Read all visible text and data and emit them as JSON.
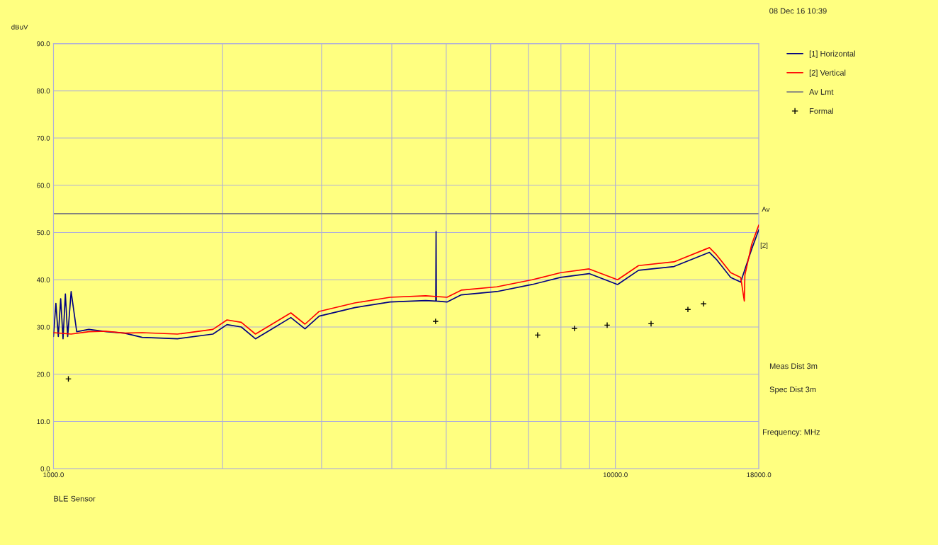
{
  "chart_data": {
    "type": "line",
    "ylabel": "dBuV",
    "xlabel": "Frequency: MHz",
    "log": "x",
    "xlim": [
      1000,
      18000
    ],
    "xticks": [
      {
        "value": 1000,
        "label": "1000.0"
      },
      {
        "value": 2000,
        "label": null
      },
      {
        "value": 3000,
        "label": null
      },
      {
        "value": 4000,
        "label": null
      },
      {
        "value": 5000,
        "label": null
      },
      {
        "value": 6000,
        "label": null
      },
      {
        "value": 7000,
        "label": null
      },
      {
        "value": 8000,
        "label": null
      },
      {
        "value": 9000,
        "label": null
      },
      {
        "value": 10000,
        "label": "10000.0"
      },
      {
        "value": 18000,
        "label": "18000.0"
      }
    ],
    "ylim": [
      0,
      90
    ],
    "yticks": [
      {
        "value": 0,
        "label": "0.0"
      },
      {
        "value": 10,
        "label": "10.0"
      },
      {
        "value": 20,
        "label": "20.0"
      },
      {
        "value": 30,
        "label": "30.0"
      },
      {
        "value": 40,
        "label": "40.0"
      },
      {
        "value": 50,
        "label": "50.0"
      },
      {
        "value": 60,
        "label": "60.0"
      },
      {
        "value": 70,
        "label": "70.0"
      },
      {
        "value": 80,
        "label": "80.0"
      },
      {
        "value": 90,
        "label": "90.0"
      }
    ],
    "grid": true,
    "legend": "right",
    "series": [
      {
        "name": "[1] Horizontal",
        "color": "#000080",
        "x": [
          1000,
          1010,
          1020,
          1030,
          1040,
          1050,
          1060,
          1075,
          1100,
          1156,
          1243,
          1337,
          1438,
          1662,
          1922,
          2036,
          2159,
          2288,
          2425,
          2645,
          2803,
          2971,
          3436,
          3973,
          4595,
          4790,
          4796,
          4802,
          5015,
          5318,
          6150,
          7111,
          7990,
          8979,
          10090,
          10995,
          12713,
          14700,
          15130,
          16040,
          16710,
          17480,
          18000
        ],
        "values": [
          28,
          35,
          28,
          36,
          27.5,
          37,
          28,
          37.5,
          29,
          29.5,
          29,
          28.7,
          27.8,
          27.5,
          28.5,
          30.5,
          30,
          27.5,
          29.3,
          32,
          29.6,
          32.3,
          34.1,
          35.3,
          35.6,
          35.5,
          50.2,
          35.5,
          35.3,
          36.8,
          37.5,
          39,
          40.5,
          41.3,
          39,
          42,
          42.8,
          45.8,
          44.3,
          40.5,
          39.5,
          46.5,
          50.6
        ]
      },
      {
        "name": "[2] Vertical",
        "color": "#ff0000",
        "x": [
          1000,
          1075,
          1156,
          1243,
          1337,
          1438,
          1662,
          1922,
          2036,
          2159,
          2288,
          2425,
          2645,
          2803,
          2971,
          3436,
          3973,
          4595,
          5015,
          5318,
          6150,
          7111,
          7990,
          8979,
          10090,
          10995,
          12713,
          14700,
          15130,
          16040,
          16710,
          16960,
          17000,
          17480,
          18000
        ],
        "values": [
          28.8,
          28.5,
          29,
          29.1,
          28.7,
          28.8,
          28.5,
          29.5,
          31.5,
          31,
          28.5,
          30.3,
          33,
          30.6,
          33.3,
          35.1,
          36.3,
          36.6,
          36.3,
          37.8,
          38.5,
          40,
          41.5,
          42.3,
          40,
          43,
          43.8,
          46.8,
          45.3,
          41.5,
          40.5,
          35.5,
          41,
          47.5,
          51.6
        ]
      },
      {
        "name": "Av Lmt",
        "color": "#808080",
        "x": [
          1000,
          18000
        ],
        "values": [
          54,
          54
        ]
      },
      {
        "name": "Formal",
        "color": "#000000",
        "type": "scatter",
        "marker": "cross",
        "x": [
          1063,
          4786,
          7272,
          8453,
          9668,
          11574,
          13460,
          14350
        ],
        "values": [
          19.0,
          31.2,
          28.3,
          29.7,
          30.4,
          30.7,
          33.7,
          34.9
        ]
      }
    ],
    "annotations": [
      {
        "text": "Av",
        "x": 18000,
        "y": 54
      },
      "[2]",
      "Meas Dist 3m",
      "Spec Dist 3m",
      "BLE Sensor",
      "08 Dec 16 10:39"
    ]
  }
}
